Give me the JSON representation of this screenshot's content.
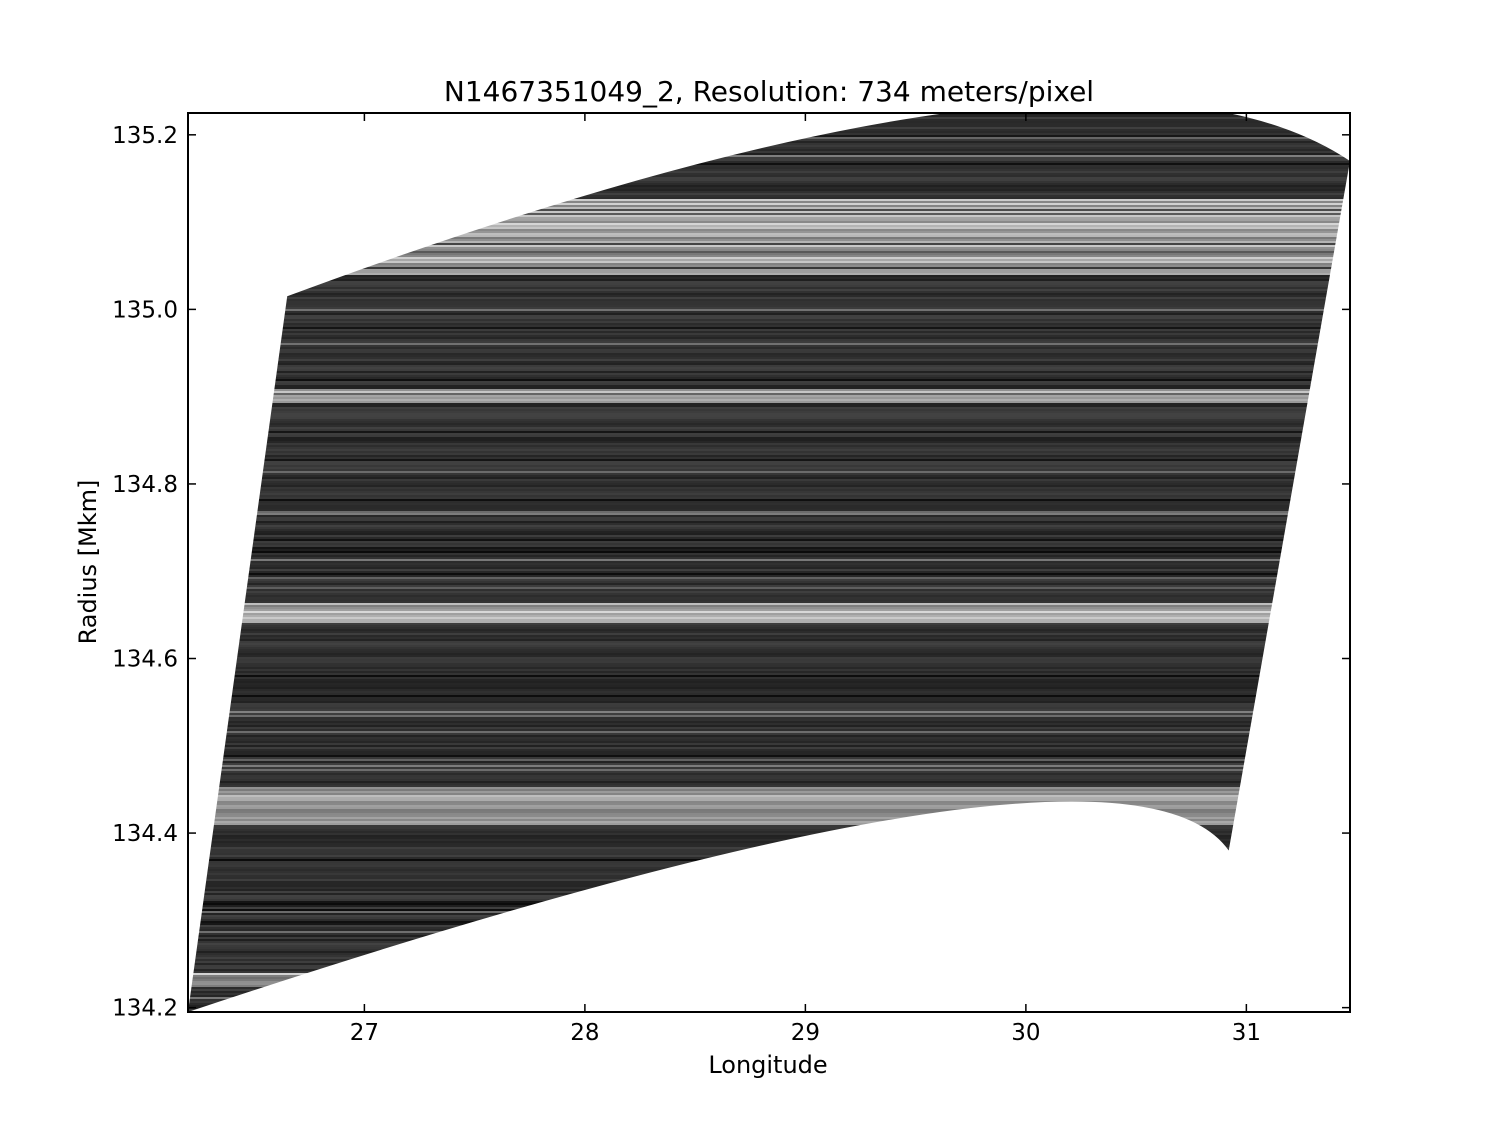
{
  "chart_data": {
    "type": "heatmap",
    "title": "N1467351049_2, Resolution: 734 meters/pixel",
    "xlabel": "Longitude",
    "ylabel": "Radius [Mkm]",
    "xlim": [
      26.2,
      31.47
    ],
    "ylim": [
      134.195,
      135.225
    ],
    "x_ticks": [
      27,
      28,
      29,
      30,
      31
    ],
    "x_tick_labels": [
      "27",
      "28",
      "29",
      "30",
      "31"
    ],
    "y_ticks": [
      134.2,
      134.4,
      134.6,
      134.8,
      135.0,
      135.2
    ],
    "y_tick_labels": [
      "134.2",
      "134.4",
      "134.6",
      "134.8",
      "135.0",
      "135.2"
    ],
    "colormap": "gray",
    "grid": false,
    "image_footprint": {
      "corners": [
        {
          "lon": 26.2,
          "radius": 134.195
        },
        {
          "lon": 26.65,
          "radius": 135.015
        },
        {
          "lon": 31.47,
          "radius": 135.17
        },
        {
          "lon": 30.92,
          "radius": 134.38
        }
      ],
      "top_edge_peak": {
        "lon": 29.7,
        "radius": 135.227
      },
      "bottom_edge_peak": {
        "lon": 29.5,
        "radius": 134.42
      }
    },
    "bright_bands_radius": [
      {
        "from": 135.04,
        "to": 135.13,
        "level": 0.85
      },
      {
        "from": 134.895,
        "to": 134.91,
        "level": 0.7
      },
      {
        "from": 134.64,
        "to": 134.665,
        "level": 0.75
      },
      {
        "from": 134.41,
        "to": 134.455,
        "level": 0.7
      },
      {
        "from": 134.225,
        "to": 134.24,
        "level": 0.6
      }
    ]
  }
}
